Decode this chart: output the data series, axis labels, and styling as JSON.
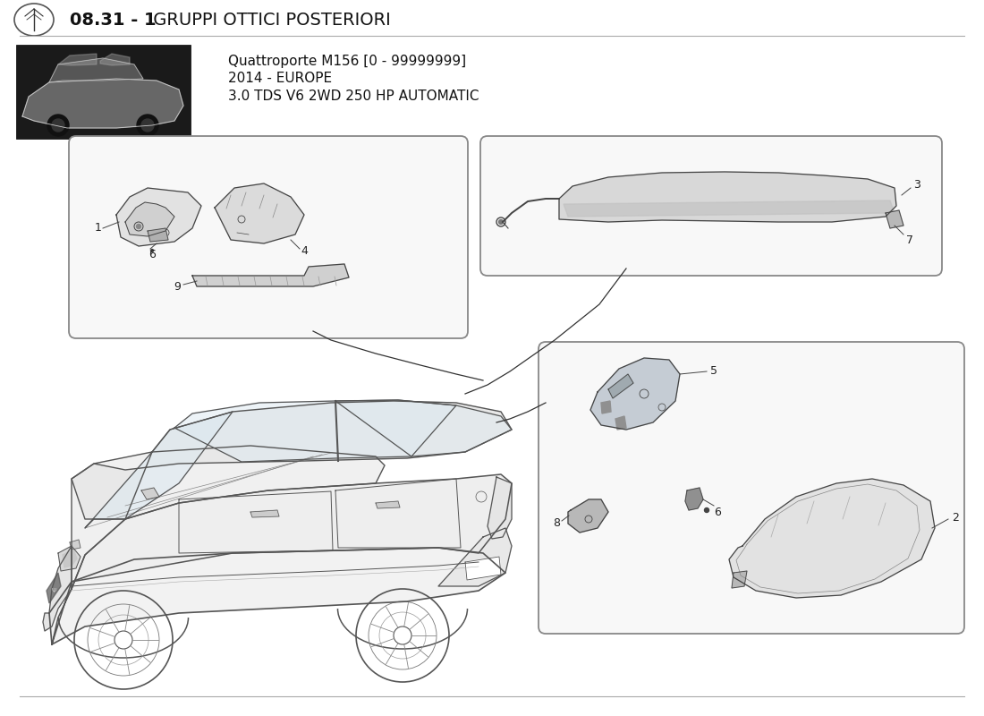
{
  "title_bold": "08.31 - 1",
  "title_regular": " GRUPPI OTTICI POSTERIORI",
  "subtitle_line1": "Quattroporte M156 [0 - 99999999]",
  "subtitle_line2": "2014 - EUROPE",
  "subtitle_line3": "3.0 TDS V6 2WD 250 HP AUTOMATIC",
  "bg_color": "#ffffff",
  "header_line_color": "#aaaaaa",
  "box_edge_color": "#888888",
  "drawing_line_color": "#444444",
  "part_label_color": "#222222",
  "car_line_color": "#555555"
}
